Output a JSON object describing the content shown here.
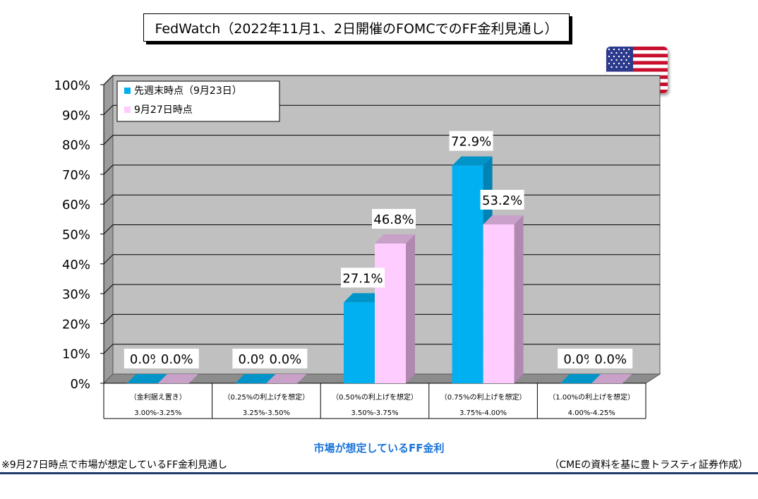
{
  "title": "FedWatch（2022年11月1、2日開催のFOMCでのFF金利見通し）",
  "chart_data": {
    "type": "bar",
    "title": "FedWatch（2022年11月1、2日開催のFOMCでのFF金利見通し）",
    "xlabel": "市場が想定しているFF金利",
    "ylabel": "",
    "ylim": [
      0,
      100
    ],
    "yticks": [
      "0%",
      "10%",
      "20%",
      "30%",
      "40%",
      "50%",
      "60%",
      "70%",
      "80%",
      "90%",
      "100%"
    ],
    "categories": [
      {
        "label1": "（金利据え置き）",
        "label2": "3.00%-3.25%"
      },
      {
        "label1": "（0.25%の利上げを想定）",
        "label2": "3.25%-3.50%"
      },
      {
        "label1": "（0.50%の利上げを想定）",
        "label2": "3.50%-3.75%"
      },
      {
        "label1": "（0.75%の利上げを想定）",
        "label2": "3.75%-4.00%"
      },
      {
        "label1": "（1.00%の利上げを想定）",
        "label2": "4.00%-4.25%"
      }
    ],
    "series": [
      {
        "name": "先週末時点（9月23日）",
        "values": [
          0.0,
          0.0,
          27.1,
          72.9,
          0.0
        ],
        "labels": [
          "0.0%",
          "0.0%",
          "27.1%",
          "72.9%",
          "0.0%"
        ],
        "color": "#00b0f0",
        "side_color": "#0082b4",
        "top_color": "#0094c8"
      },
      {
        "name": "9月27日時点",
        "values": [
          0.0,
          0.0,
          46.8,
          53.2,
          0.0
        ],
        "labels": [
          "0.0%",
          "0.0%",
          "46.8%",
          "53.2%",
          "0.0%"
        ],
        "color": "#ffccff",
        "side_color": "#b088b0",
        "top_color": "#c8a0c8"
      }
    ],
    "grid": true,
    "legend": "top-left",
    "background": "#c0c0c0"
  },
  "notes": {
    "left": "※9月27日時点で市場が想定しているFF金利見通し",
    "right": "（CMEの資料を基に豊トラスティ証券作成）"
  }
}
